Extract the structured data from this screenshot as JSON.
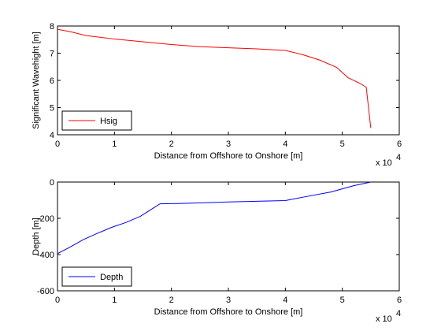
{
  "chart_data": [
    {
      "type": "line",
      "xlabel": "Distance from Offshore to Onshore [m]",
      "ylabel": "Significant Wavehight [m]",
      "x_exponent_label": "x 10",
      "x_exponent_power": "4",
      "xlim": [
        0,
        6
      ],
      "ylim": [
        4,
        8
      ],
      "xticks": [
        "0",
        "1",
        "2",
        "3",
        "4",
        "5",
        "6"
      ],
      "yticks": [
        "4",
        "5",
        "6",
        "7",
        "8"
      ],
      "legend_position": "bottom-left",
      "series": [
        {
          "name": "Hsig",
          "color": "#ff0000",
          "x": [
            0,
            0.25,
            0.5,
            1.0,
            1.5,
            2.0,
            2.5,
            3.0,
            3.5,
            4.0,
            4.3,
            4.6,
            4.9,
            5.1,
            5.3,
            5.42,
            5.5
          ],
          "y": [
            7.88,
            7.78,
            7.65,
            7.52,
            7.42,
            7.32,
            7.24,
            7.2,
            7.16,
            7.1,
            6.95,
            6.75,
            6.48,
            6.1,
            5.9,
            5.75,
            4.25
          ]
        }
      ]
    },
    {
      "type": "line",
      "xlabel": "Distance from Offshore to Onshore [m]",
      "ylabel": "Depth [m]",
      "x_exponent_label": "x 10",
      "x_exponent_power": "4",
      "xlim": [
        0,
        6
      ],
      "ylim": [
        -600,
        0
      ],
      "xticks": [
        "0",
        "1",
        "2",
        "3",
        "4",
        "5",
        "6"
      ],
      "yticks": [
        "-600",
        "-400",
        "-200",
        "0"
      ],
      "legend_position": "bottom-left",
      "series": [
        {
          "name": "Depth",
          "color": "#0000ff",
          "x": [
            0,
            0.2,
            0.45,
            0.7,
            0.95,
            1.2,
            1.45,
            1.6,
            1.8,
            2.2,
            3.0,
            4.0,
            4.3,
            4.8,
            5.2,
            5.5
          ],
          "y": [
            -395,
            -362,
            -318,
            -283,
            -250,
            -223,
            -190,
            -160,
            -120,
            -118,
            -110,
            -102,
            -84,
            -55,
            -20,
            0
          ]
        }
      ]
    }
  ]
}
